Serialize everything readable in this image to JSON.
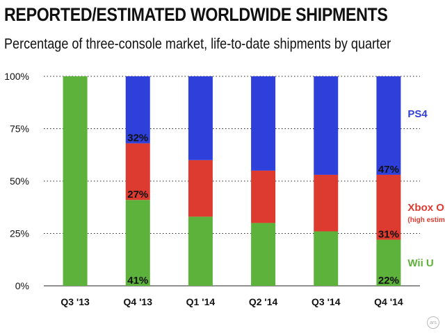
{
  "chart_data": {
    "type": "bar",
    "stacked": true,
    "title": "REPORTED/ESTIMATED WORLDWIDE SHIPMENTS",
    "subtitle": "Percentage of three-console market, life-to-date shipments by quarter",
    "categories": [
      "Q3 '13",
      "Q4 '13",
      "Q1 '14",
      "Q2 '14",
      "Q3 '14",
      "Q4 '14"
    ],
    "y_ticks": [
      "100%",
      "75%",
      "50%",
      "25%",
      "0%"
    ],
    "ylim": [
      0,
      100
    ],
    "grid": "horizontal dotted",
    "series": [
      {
        "name": "Wii U",
        "color": "#5cb23a",
        "values": [
          100,
          41,
          33,
          30,
          26,
          22
        ]
      },
      {
        "name": "Xbox One",
        "note": "(high estimate)",
        "color": "#dd3b30",
        "values": [
          0,
          27,
          27,
          25,
          27,
          31
        ]
      },
      {
        "name": "PS4",
        "color": "#2f3fd9",
        "values": [
          0,
          32,
          40,
          45,
          47,
          47
        ]
      }
    ],
    "data_labels": [
      {
        "category_index": 1,
        "series": "Wii U",
        "text": "41%"
      },
      {
        "category_index": 1,
        "series": "Xbox One",
        "text": "27%"
      },
      {
        "category_index": 1,
        "series": "PS4",
        "text": "32%"
      },
      {
        "category_index": 5,
        "series": "Wii U",
        "text": "22%"
      },
      {
        "category_index": 5,
        "series": "Xbox One",
        "text": "31%"
      },
      {
        "category_index": 5,
        "series": "PS4",
        "text": "47%"
      }
    ],
    "legend_placement": "right, beside each segment"
  },
  "logo_text": "ars"
}
